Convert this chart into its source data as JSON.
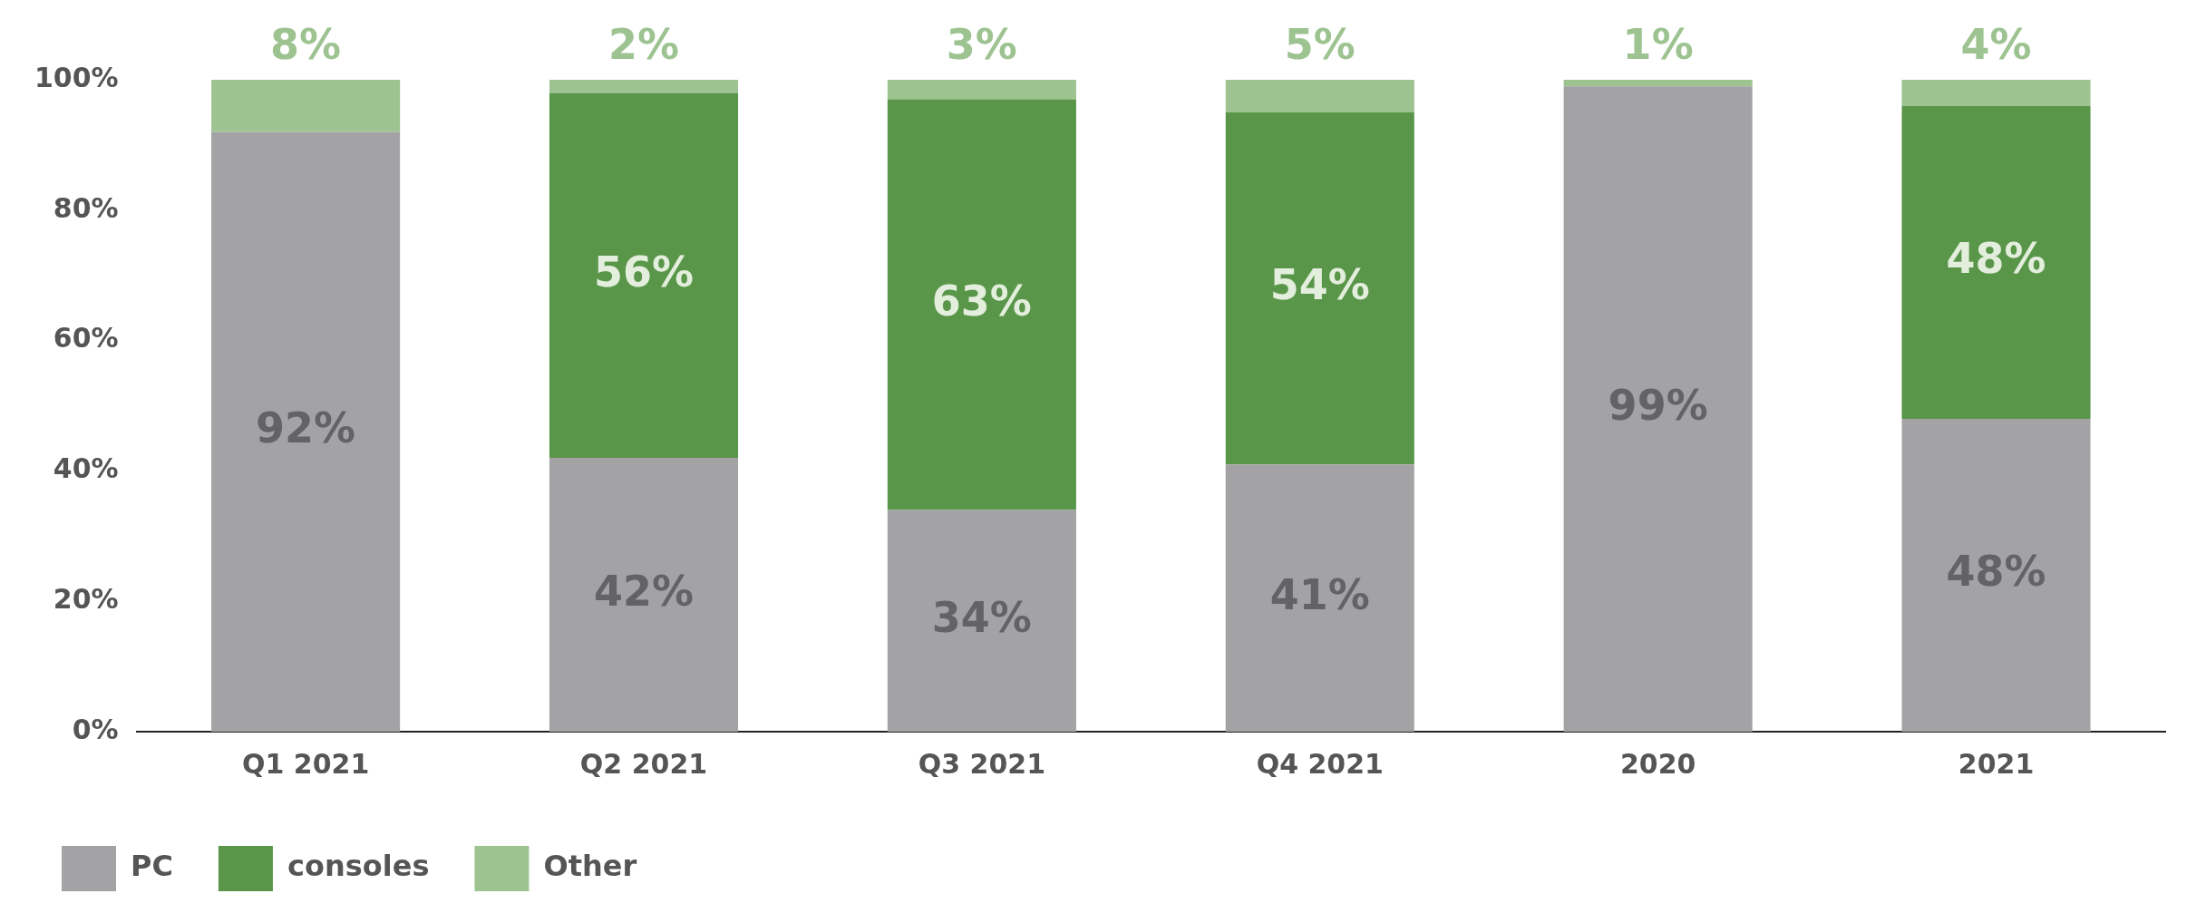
{
  "chart_data": {
    "type": "bar",
    "stacked": true,
    "categories": [
      "Q1 2021",
      "Q2 2021",
      "Q3 2021",
      "Q4 2021",
      "2020",
      "2021"
    ],
    "series": [
      {
        "name": "PC",
        "color": "#a3a3a5",
        "values": [
          92,
          42,
          34,
          41,
          99,
          48
        ],
        "value_labels": [
          "92%",
          "42%",
          "34%",
          "41%",
          "99%",
          "48%"
        ]
      },
      {
        "name": "consoles",
        "color": "#5a964a",
        "values": [
          0,
          56,
          63,
          54,
          0,
          48
        ],
        "value_labels": [
          null,
          "56%",
          "63%",
          "54%",
          null,
          "48%"
        ]
      },
      {
        "name": "Other",
        "color": "#9dc391",
        "values": [
          8,
          2,
          3,
          5,
          1,
          4
        ],
        "value_labels": [
          "8%",
          "2%",
          "3%",
          "5%",
          "1%",
          "4%"
        ]
      }
    ],
    "ylim": [
      0,
      100
    ],
    "yticks": [
      {
        "value": 0,
        "label": "0%"
      },
      {
        "value": 20,
        "label": "20%"
      },
      {
        "value": 40,
        "label": "40%"
      },
      {
        "value": 60,
        "label": "60%"
      },
      {
        "value": 80,
        "label": "80%"
      },
      {
        "value": 100,
        "label": "100%"
      }
    ],
    "grid": false,
    "legend": "bottom left"
  }
}
